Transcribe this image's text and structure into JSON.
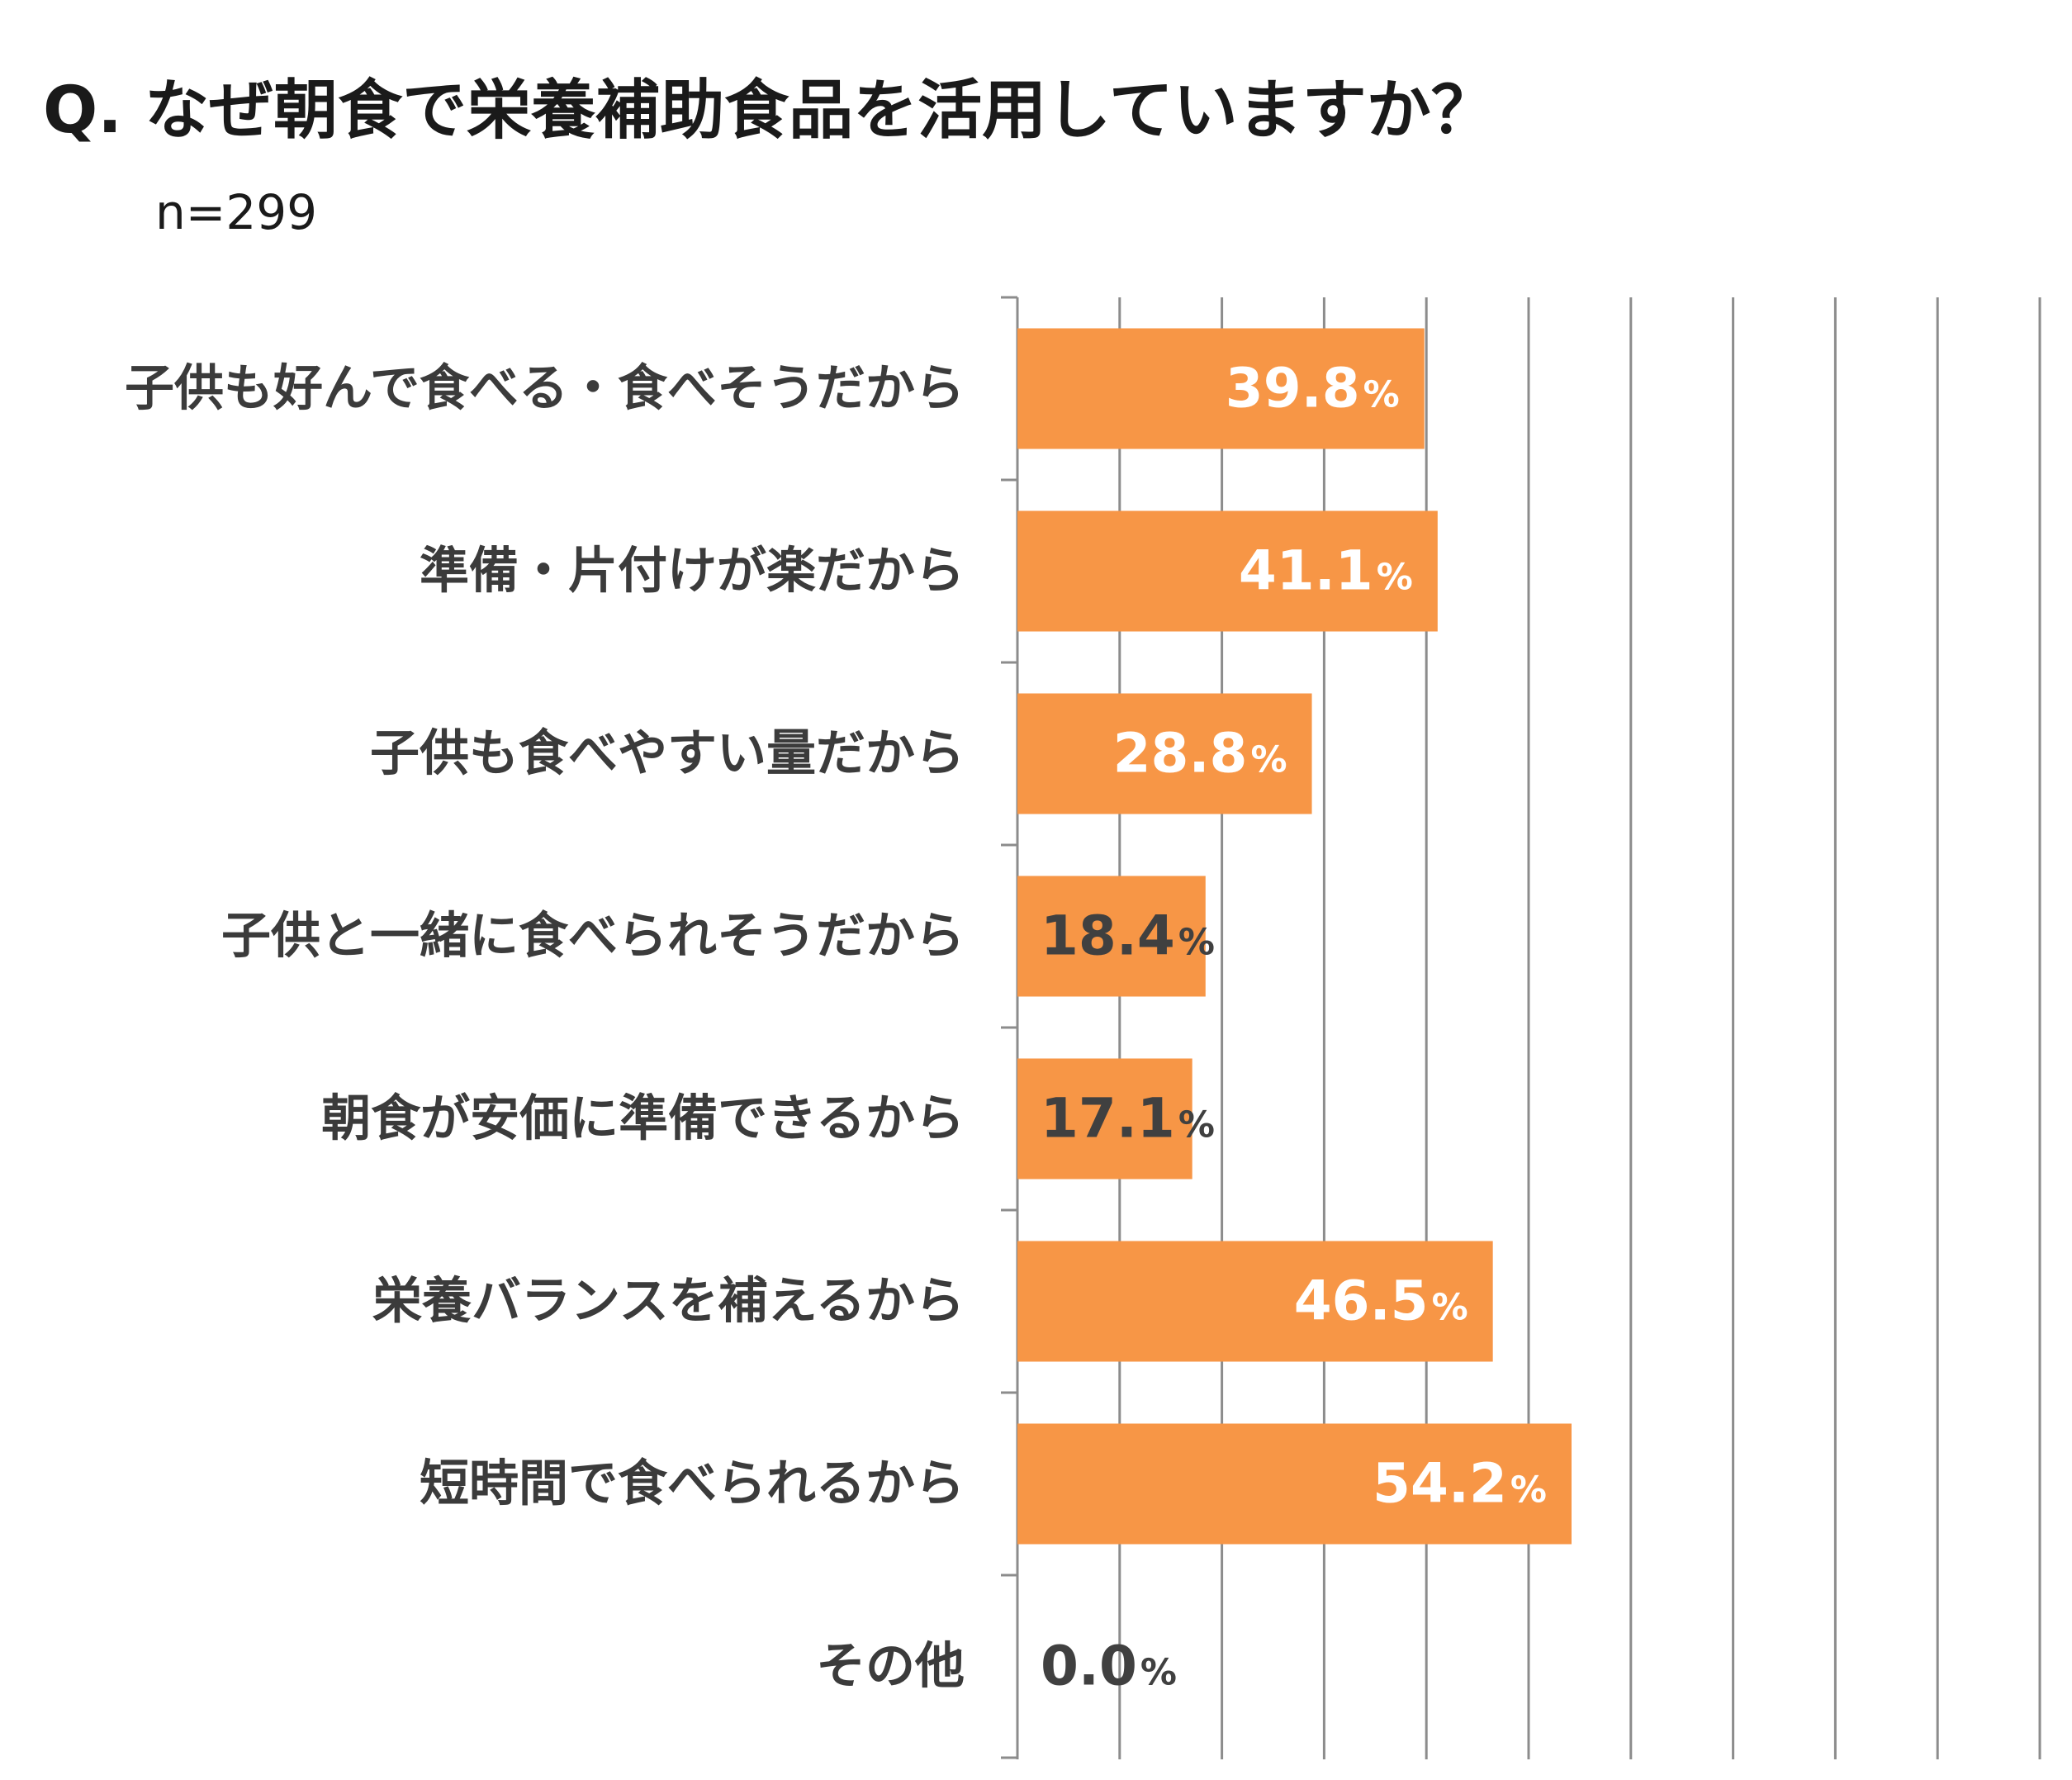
{
  "title": "Q. なぜ朝食で栄養補助食品を活用していますか？",
  "subtitle": "n=299",
  "colors": {
    "bar": "#F79646",
    "label_on_bar": "#FFFFFF",
    "label_off_bar": "#404040",
    "grid": "#8C8C8C",
    "axis": "#8C8C8C"
  },
  "chart_data": {
    "type": "bar",
    "orientation": "horizontal",
    "categories": [
      "子供も好んで食べる・食べそうだから",
      "準備・片付けが楽だから",
      "子供も食べやすい量だから",
      "子供と一緒に食べられそうだから",
      "朝食が安価に準備できるから",
      "栄養バランスを補えるから",
      "短時間で食べられるから",
      "その他"
    ],
    "values": [
      39.8,
      41.1,
      28.8,
      18.4,
      17.1,
      46.5,
      54.2,
      0.0
    ],
    "value_labels": [
      "39.8",
      "41.1",
      "28.8",
      "18.4",
      "17.1",
      "46.5",
      "54.2",
      "0.0"
    ],
    "unit": "%",
    "xlim": [
      0,
      100
    ],
    "grid": true,
    "grid_step": 10,
    "legend": "none"
  }
}
